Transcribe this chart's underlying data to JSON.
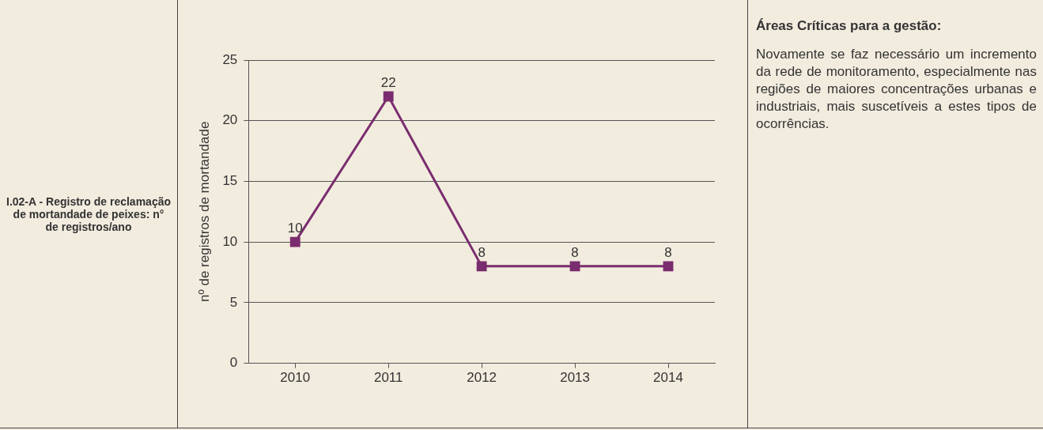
{
  "chart_data": {
    "type": "line",
    "title": "I.02-A - Registro de reclamação de mortandade de peixes: n° de registros/ano",
    "ylabel": "nº de registros de mortandade",
    "categories": [
      "2010",
      "2011",
      "2012",
      "2013",
      "2014"
    ],
    "series": [
      {
        "color": "#7a2d6e",
        "values": [
          10,
          22,
          8,
          8,
          8
        ]
      }
    ],
    "ylim": [
      0,
      25
    ],
    "yticks": [
      0,
      5,
      10,
      15,
      20,
      25
    ],
    "grid": "y",
    "marker": "square",
    "line_style": "solid",
    "data_labels": true,
    "legend": false,
    "annotations": [
      "Áreas Críticas para a gestão:",
      "Novamente se faz necessário um incremento da rede de monitoramento, especialmente nas regiões de maiores concentrações urbanas e industriais, mais suscetíveis a estes tipos de ocorrências."
    ]
  }
}
